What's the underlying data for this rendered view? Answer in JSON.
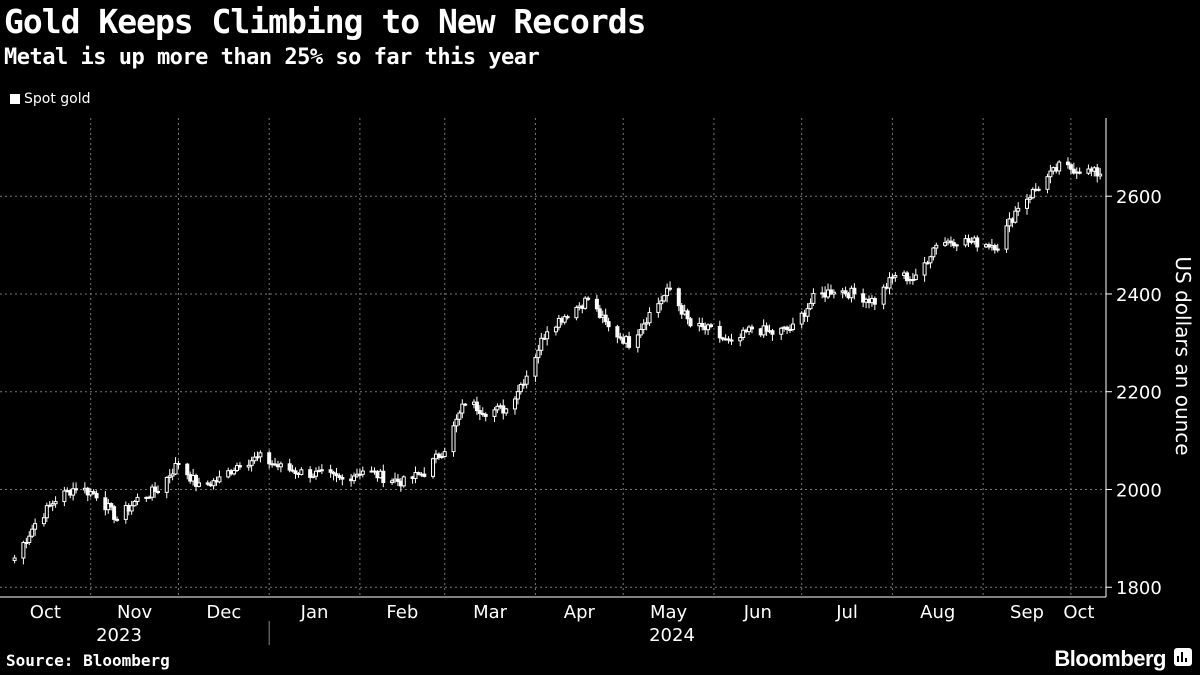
{
  "header": {
    "title": "Gold Keeps Climbing to New Records",
    "subtitle": "Metal is up more than 25% so far this year"
  },
  "footer": {
    "source": "Source: Bloomberg",
    "brand": "Bloomberg"
  },
  "colors": {
    "background": "#000000",
    "series": "#ffffff",
    "grid": "#666666"
  },
  "chart_data": {
    "type": "candlestick",
    "title": "Gold Keeps Climbing to New Records",
    "subtitle": "Metal is up more than 25% so far this year",
    "ylabel": "US dollars an ounce",
    "ylim": [
      1780,
      2760
    ],
    "yticks": [
      1800,
      2000,
      2200,
      2400,
      2600
    ],
    "grid": true,
    "legend_position": "top-left",
    "x_month_labels": [
      "Oct",
      "Nov",
      "Dec",
      "Jan",
      "Feb",
      "Mar",
      "Apr",
      "May",
      "Jun",
      "Jul",
      "Aug",
      "Sep",
      "Oct"
    ],
    "x_year_labels": [
      "2023",
      "2024"
    ],
    "series": [
      {
        "name": "Spot gold",
        "weekly_close": [
          [
            "2023-10-06",
            1860
          ],
          [
            "2023-10-13",
            1930
          ],
          [
            "2023-10-20",
            1980
          ],
          [
            "2023-10-27",
            2005
          ],
          [
            "2023-11-03",
            1990
          ],
          [
            "2023-11-10",
            1940
          ],
          [
            "2023-11-17",
            1980
          ],
          [
            "2023-11-24",
            2000
          ],
          [
            "2023-12-01",
            2055
          ],
          [
            "2023-12-08",
            2005
          ],
          [
            "2023-12-15",
            2020
          ],
          [
            "2023-12-22",
            2055
          ],
          [
            "2023-12-29",
            2065
          ],
          [
            "2024-01-05",
            2045
          ],
          [
            "2024-01-12",
            2035
          ],
          [
            "2024-01-19",
            2030
          ],
          [
            "2024-01-26",
            2020
          ],
          [
            "2024-02-02",
            2040
          ],
          [
            "2024-02-09",
            2025
          ],
          [
            "2024-02-16",
            2015
          ],
          [
            "2024-02-23",
            2035
          ],
          [
            "2024-03-01",
            2085
          ],
          [
            "2024-03-08",
            2180
          ],
          [
            "2024-03-15",
            2160
          ],
          [
            "2024-03-22",
            2165
          ],
          [
            "2024-03-29",
            2235
          ],
          [
            "2024-04-05",
            2330
          ],
          [
            "2024-04-12",
            2360
          ],
          [
            "2024-04-19",
            2390
          ],
          [
            "2024-04-26",
            2330
          ],
          [
            "2024-05-03",
            2300
          ],
          [
            "2024-05-10",
            2360
          ],
          [
            "2024-05-17",
            2410
          ],
          [
            "2024-05-24",
            2335
          ],
          [
            "2024-05-31",
            2325
          ],
          [
            "2024-06-07",
            2295
          ],
          [
            "2024-06-14",
            2330
          ],
          [
            "2024-06-21",
            2320
          ],
          [
            "2024-06-28",
            2330
          ],
          [
            "2024-07-05",
            2390
          ],
          [
            "2024-07-12",
            2410
          ],
          [
            "2024-07-19",
            2400
          ],
          [
            "2024-07-26",
            2385
          ],
          [
            "2024-08-02",
            2440
          ],
          [
            "2024-08-09",
            2430
          ],
          [
            "2024-08-16",
            2505
          ],
          [
            "2024-08-23",
            2510
          ],
          [
            "2024-08-30",
            2505
          ],
          [
            "2024-09-06",
            2500
          ],
          [
            "2024-09-13",
            2580
          ],
          [
            "2024-09-20",
            2620
          ],
          [
            "2024-09-27",
            2660
          ],
          [
            "2024-10-04",
            2655
          ],
          [
            "2024-10-11",
            2645
          ]
        ]
      }
    ]
  }
}
